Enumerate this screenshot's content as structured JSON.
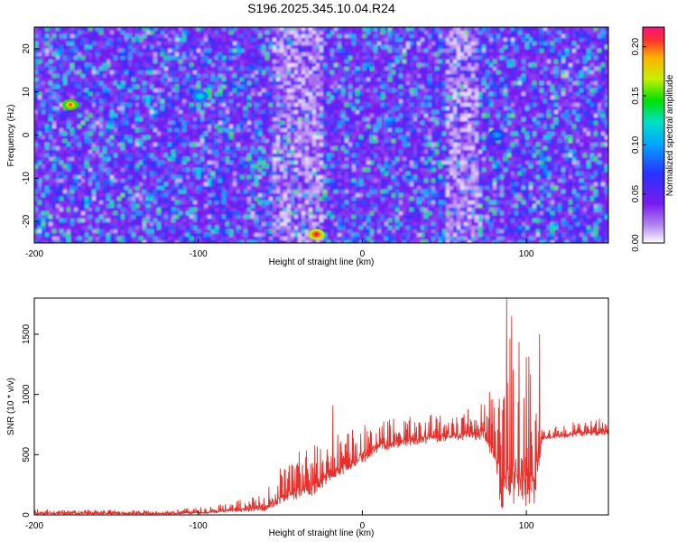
{
  "title": "S196.2025.345.10.04.R24",
  "chart_data": [
    {
      "type": "heatmap",
      "title": "S196.2025.345.10.04.R24",
      "xlabel": "Height of straight line (km)",
      "ylabel": "Frequency (Hz)",
      "xlim": [
        -200,
        150
      ],
      "ylim": [
        -25,
        25
      ],
      "xticks": [
        -200,
        -100,
        0,
        100
      ],
      "yticks": [
        -20,
        -10,
        0,
        10,
        20
      ],
      "colorbar": {
        "label": "Normalized spectral amplitude",
        "range": [
          0,
          0.22
        ],
        "ticks": [
          "0.00",
          "0.05",
          "0.10",
          "0.15",
          "0.20"
        ]
      },
      "hot_spots": [
        {
          "x": -28,
          "y": -23,
          "value": 0.22
        },
        {
          "x": -178,
          "y": 7,
          "value": 0.2
        },
        {
          "x": -99,
          "y": 9,
          "value": 0.12
        },
        {
          "x": 82,
          "y": 0,
          "value": 0.1
        }
      ],
      "low_bands": [
        {
          "x_start": -55,
          "x_end": -25
        },
        {
          "x_start": 50,
          "x_end": 70
        }
      ]
    },
    {
      "type": "line",
      "xlabel": "Height of straight line (km)",
      "ylabel": "SNR (10 * v/v)",
      "xlim": [
        -200,
        150
      ],
      "ylim": [
        0,
        1800
      ],
      "xticks": [
        -200,
        -100,
        0,
        100
      ],
      "yticks": [
        0,
        500,
        1000,
        1500
      ],
      "color": "#e8312c",
      "envelope": [
        {
          "x": -200,
          "low": 5,
          "high": 50
        },
        {
          "x": -120,
          "low": 5,
          "high": 40
        },
        {
          "x": -95,
          "low": 10,
          "high": 70
        },
        {
          "x": -80,
          "low": 20,
          "high": 120
        },
        {
          "x": -60,
          "low": 30,
          "high": 170
        },
        {
          "x": -45,
          "low": 100,
          "high": 500
        },
        {
          "x": -30,
          "low": 150,
          "high": 620
        },
        {
          "x": -20,
          "low": 280,
          "high": 660
        },
        {
          "x": -5,
          "low": 380,
          "high": 720
        },
        {
          "x": 10,
          "low": 520,
          "high": 790
        },
        {
          "x": 30,
          "low": 580,
          "high": 830
        },
        {
          "x": 55,
          "low": 610,
          "high": 880
        },
        {
          "x": 75,
          "low": 620,
          "high": 950
        },
        {
          "x": 85,
          "low": 50,
          "high": 1400
        },
        {
          "x": 95,
          "low": 60,
          "high": 1550
        },
        {
          "x": 105,
          "low": 80,
          "high": 1400
        },
        {
          "x": 110,
          "low": 620,
          "high": 720
        },
        {
          "x": 130,
          "low": 650,
          "high": 780
        },
        {
          "x": 150,
          "low": 660,
          "high": 830
        }
      ],
      "peaks": [
        {
          "x": -18,
          "y": 910
        },
        {
          "x": 88,
          "y": 1800
        },
        {
          "x": 91,
          "y": 1650
        },
        {
          "x": 108,
          "y": 1500
        }
      ]
    }
  ]
}
